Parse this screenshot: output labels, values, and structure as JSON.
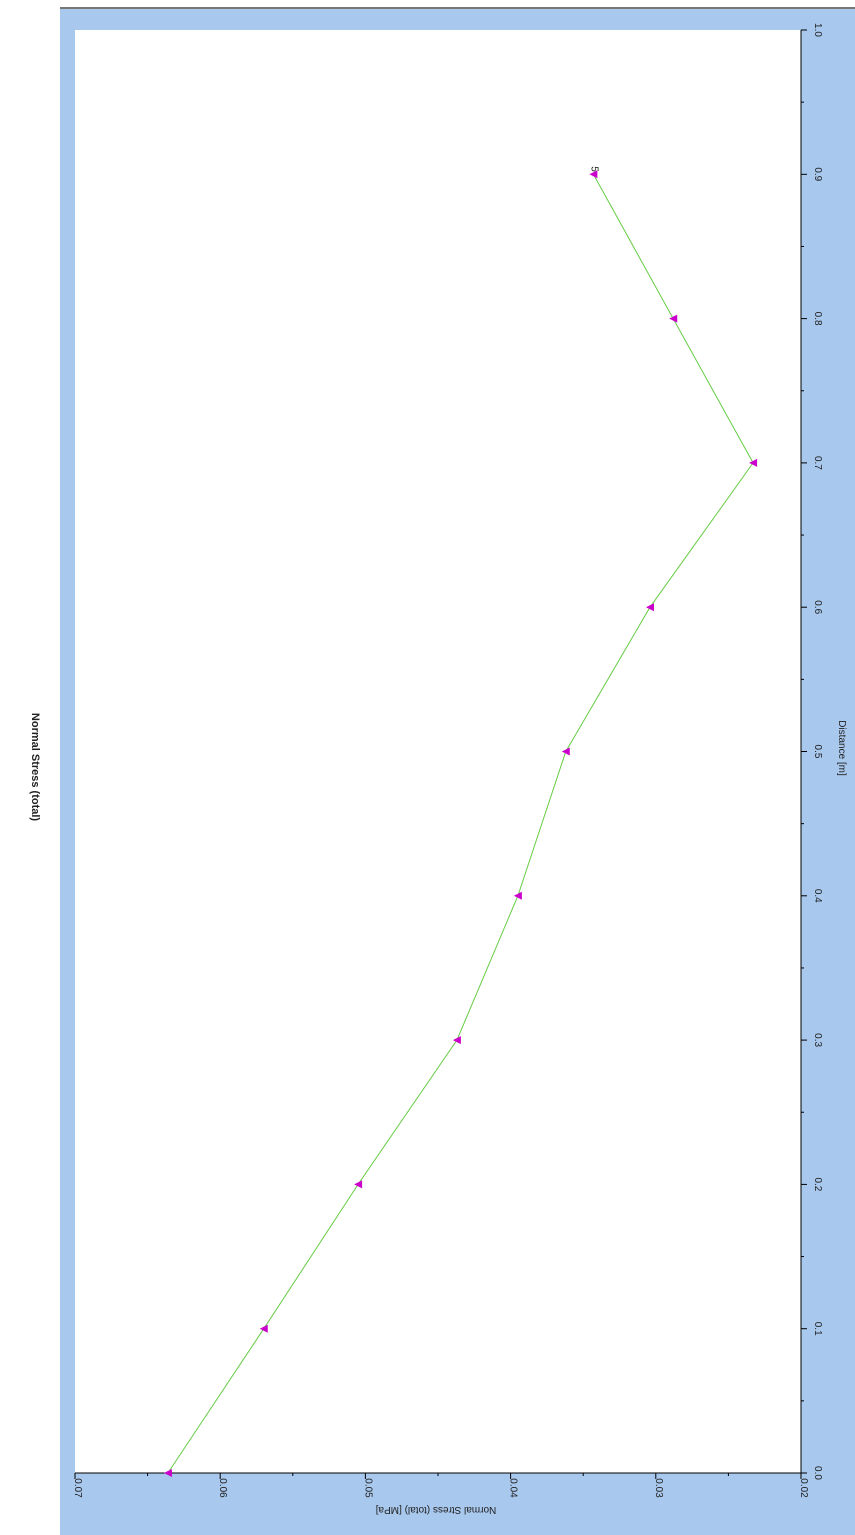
{
  "chart_data": {
    "type": "line",
    "title": "Normal Stress (total)",
    "xlabel": "Distance [m]",
    "ylabel": "Normal Stress (total) [MPa]",
    "xlim": [
      0.0,
      1.0
    ],
    "ylim": [
      0.02,
      0.07
    ],
    "x_ticks": [
      "0.0",
      "0.1",
      "0.2",
      "0.3",
      "0.4",
      "0.5",
      "0.6",
      "0.7",
      "0.8",
      "0.9",
      "1.0"
    ],
    "y_ticks": [
      "0.02",
      "0.03",
      "0.04",
      "0.05",
      "0.06",
      "0.07"
    ],
    "grid": false,
    "orientation": "rotated 90° clockwise",
    "series": [
      {
        "x": [
          0.0,
          0.1,
          0.2,
          0.3,
          0.4,
          0.5,
          0.6,
          0.7,
          0.8,
          0.9
        ],
        "y": [
          0.0636,
          0.057,
          0.0505,
          0.0437,
          0.0395,
          0.0362,
          0.0304,
          0.0233,
          0.0288,
          0.0343
        ],
        "marker": "triangle",
        "line_color": "#66cc44",
        "marker_color": "#cc00cc"
      }
    ],
    "annotations": [
      {
        "text": "5",
        "x": 0.9,
        "y": 0.0343
      }
    ],
    "colors": {
      "frame": "#a8c8ee",
      "plot_background": "#ffffff",
      "axis": "#000000"
    }
  }
}
